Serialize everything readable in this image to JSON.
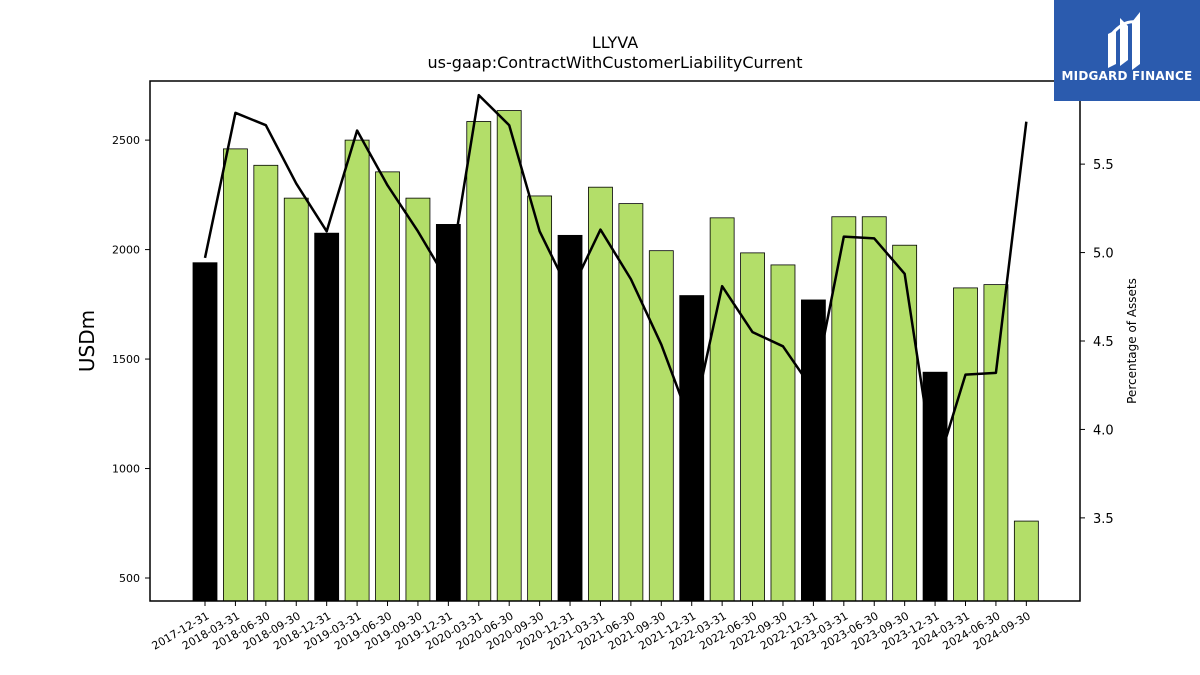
{
  "chart_data": {
    "type": "bar",
    "title": "LLYVA",
    "subtitle": "us-gaap:ContractWithCustomerLiabilityCurrent",
    "ylabel": "USDm",
    "y2label": "Percentage of Assets",
    "categories": [
      "2017-12-31",
      "2018-03-31",
      "2018-06-30",
      "2018-09-30",
      "2018-12-31",
      "2019-03-31",
      "2019-06-30",
      "2019-09-30",
      "2019-12-31",
      "2020-03-31",
      "2020-06-30",
      "2020-09-30",
      "2020-12-31",
      "2021-03-31",
      "2021-06-30",
      "2021-09-30",
      "2021-12-31",
      "2022-03-31",
      "2022-06-30",
      "2022-09-30",
      "2022-12-31",
      "2023-03-31",
      "2023-06-30",
      "2023-09-30",
      "2023-12-31",
      "2024-03-31",
      "2024-06-30",
      "2024-09-30"
    ],
    "series": [
      {
        "type": "bar",
        "values": [
          1940,
          2460,
          2385,
          2235,
          2075,
          2500,
          2355,
          2235,
          2115,
          2585,
          2635,
          2245,
          2065,
          2285,
          2210,
          1995,
          1790,
          2145,
          1985,
          1930,
          1770,
          2150,
          2150,
          2020,
          1440,
          1825,
          1840,
          760
        ],
        "colors": [
          "#000000",
          "#b3de69",
          "#b3de69",
          "#b3de69",
          "#000000",
          "#b3de69",
          "#b3de69",
          "#b3de69",
          "#000000",
          "#b3de69",
          "#b3de69",
          "#b3de69",
          "#000000",
          "#b3de69",
          "#b3de69",
          "#b3de69",
          "#000000",
          "#b3de69",
          "#b3de69",
          "#b3de69",
          "#000000",
          "#b3de69",
          "#b3de69",
          "#b3de69",
          "#000000",
          "#b3de69",
          "#b3de69",
          "#b3de69"
        ]
      },
      {
        "type": "line",
        "axis": "right",
        "values": [
          4.97,
          5.79,
          5.72,
          5.39,
          5.12,
          5.69,
          5.38,
          5.12,
          4.83,
          5.89,
          5.72,
          5.12,
          4.77,
          5.13,
          4.85,
          4.48,
          4.02,
          4.81,
          4.55,
          4.47,
          4.22,
          5.09,
          5.08,
          4.88,
          3.75,
          4.31,
          4.32,
          5.74
        ]
      }
    ],
    "yticks": [
      500,
      1000,
      1500,
      2000,
      2500
    ],
    "ylim": [
      395,
      2770
    ],
    "y2ticks": [
      "3.5",
      "4.0",
      "4.5",
      "5.0",
      "5.5"
    ],
    "y2lim": [
      3.03,
      5.97
    ],
    "bar_color": "#b3de69",
    "year_end_bar_color": "#000000",
    "line_color": "#000000",
    "grid": false
  },
  "logo": {
    "text": "MIDGARD FINANCE",
    "color": "#2b5bae"
  }
}
